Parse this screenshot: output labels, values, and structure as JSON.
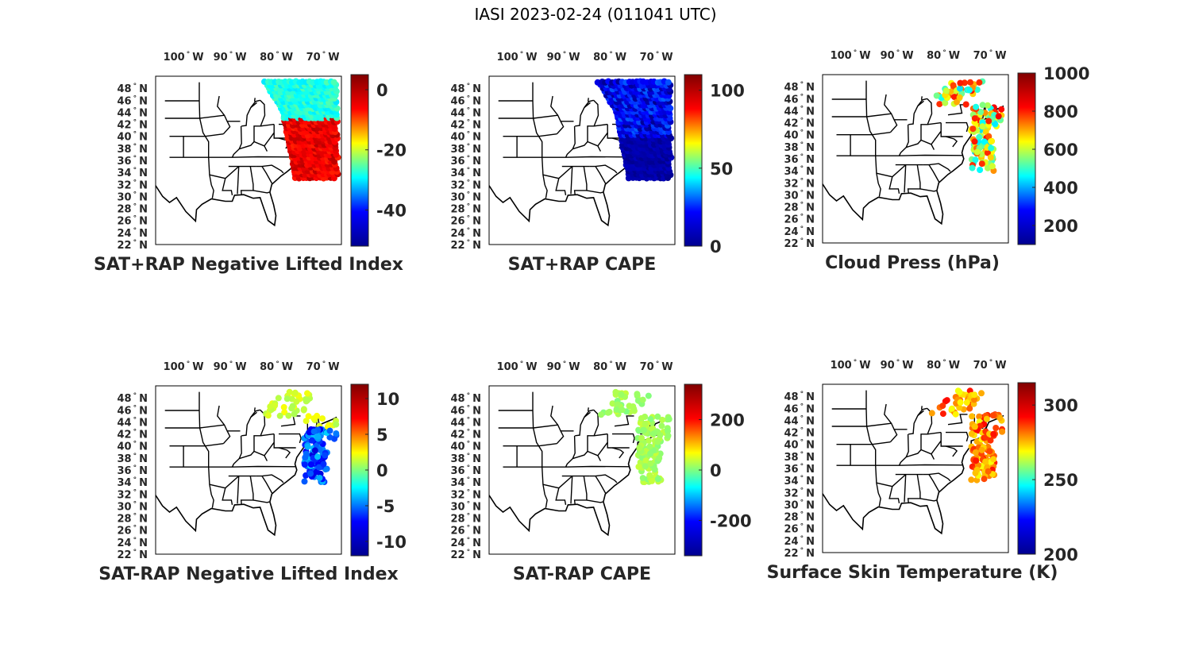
{
  "figure": {
    "title": "IASI 2023-02-24 (011041 UTC)"
  },
  "map_labels": {
    "lat": [
      "48",
      "46",
      "44",
      "42",
      "40",
      "38",
      "36",
      "34",
      "32",
      "30",
      "28",
      "26",
      "24",
      "22"
    ],
    "lat_suffix": "N",
    "lon": [
      "100",
      "90",
      "80",
      "70"
    ],
    "lon_suffix": "W",
    "degree_symbol": "°"
  },
  "colors": {
    "colormap": "jet",
    "jet_stops": [
      "#00008f",
      "#0000ff",
      "#00ffff",
      "#ffff00",
      "#ff0000",
      "#800000"
    ]
  },
  "panels": [
    {
      "caption": "SAT+RAP Negative Lifted Index",
      "colorbar": {
        "min": -52,
        "max": 5,
        "ticks": [
          "0",
          "-20",
          "-40"
        ],
        "tick_values": [
          0,
          -20,
          -40
        ]
      },
      "observation_swath": "eastern-coast",
      "dominant_value_range": [
        -25,
        0
      ]
    },
    {
      "caption": "SAT+RAP CAPE",
      "colorbar": {
        "min": 0,
        "max": 110,
        "ticks": [
          "100",
          "50",
          "0"
        ],
        "tick_values": [
          100,
          50,
          0
        ]
      },
      "observation_swath": "eastern-coast-offshore",
      "dominant_value_range": [
        0,
        15
      ]
    },
    {
      "caption": "Cloud Press (hPa)",
      "colorbar": {
        "min": 100,
        "max": 1000,
        "ticks": [
          "1000",
          "800",
          "600",
          "400",
          "200"
        ],
        "tick_values": [
          1000,
          800,
          600,
          400,
          200
        ]
      },
      "observation_swath": "scattered-coastal",
      "dominant_value_range": [
        400,
        900
      ]
    },
    {
      "caption": "SAT-RAP Negative Lifted Index",
      "colorbar": {
        "min": -12,
        "max": 12,
        "ticks": [
          "10",
          "5",
          "0",
          "-5",
          "-10"
        ],
        "tick_values": [
          10,
          5,
          0,
          -5,
          -10
        ]
      },
      "observation_swath": "scattered-coastal",
      "dominant_value_range": [
        -10,
        3
      ]
    },
    {
      "caption": "SAT-RAP CAPE",
      "colorbar": {
        "min": -340,
        "max": 340,
        "ticks": [
          "200",
          "0",
          "-200"
        ],
        "tick_values": [
          200,
          0,
          -200
        ]
      },
      "observation_swath": "scattered-coastal",
      "dominant_value_range": [
        0,
        50
      ]
    },
    {
      "caption": "Surface Skin Temperature (K)",
      "colorbar": {
        "min": 200,
        "max": 315,
        "ticks": [
          "300",
          "250",
          "200"
        ],
        "tick_values": [
          300,
          250,
          200
        ]
      },
      "observation_swath": "scattered-coastal",
      "dominant_value_range": [
        270,
        300
      ]
    }
  ]
}
